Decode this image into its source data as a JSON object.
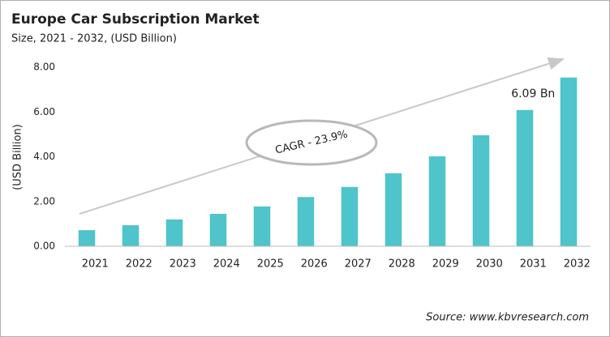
{
  "chart_data": {
    "type": "bar",
    "title": "Europe Car Subscription Market",
    "subtitle": "Size, 2021 - 2032, (USD Billion)",
    "y_label": "(USD Billion)",
    "categories": [
      "2021",
      "2022",
      "2023",
      "2024",
      "2025",
      "2026",
      "2027",
      "2028",
      "2029",
      "2030",
      "2031",
      "2032"
    ],
    "values": [
      0.72,
      0.94,
      1.2,
      1.45,
      1.78,
      2.2,
      2.65,
      3.26,
      4.02,
      4.96,
      6.09,
      7.54
    ],
    "value_labels": [
      null,
      null,
      null,
      null,
      null,
      null,
      null,
      null,
      null,
      null,
      "6.09 Bn",
      null
    ],
    "color": "#4fc4cb",
    "ylim": [
      0,
      8
    ],
    "yticks": [
      {
        "value": 0,
        "label": "0.00"
      },
      {
        "value": 2,
        "label": "2.00"
      },
      {
        "value": 4,
        "label": "4.00"
      },
      {
        "value": 6,
        "label": "6.00"
      },
      {
        "value": 8,
        "label": "8.00"
      }
    ],
    "grid": false,
    "annotation": "CAGR - 23.9%",
    "source": "Source: www.kbvresearch.com"
  }
}
